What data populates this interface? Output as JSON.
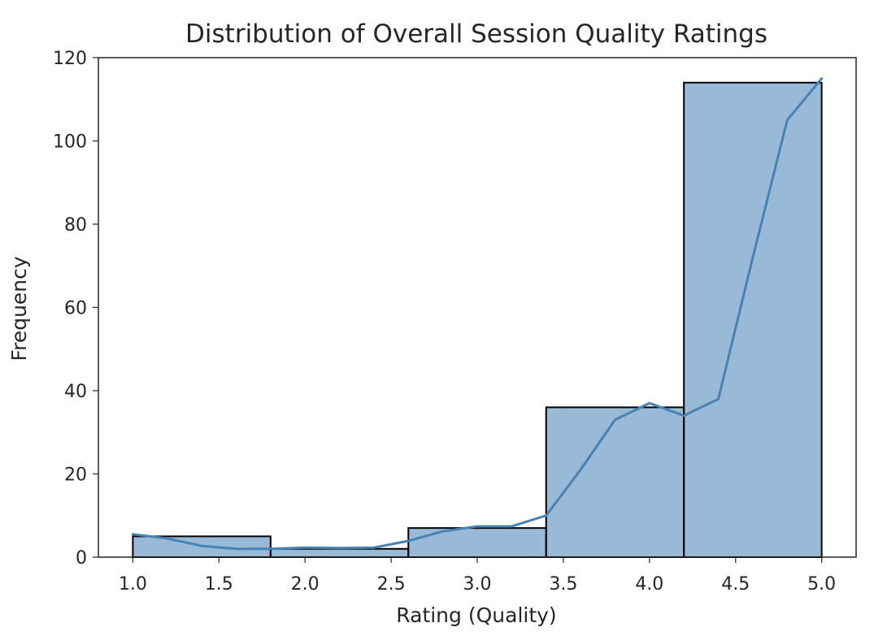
{
  "chart_data": {
    "type": "bar",
    "title": "Distribution of Overall Session Quality Ratings",
    "xlabel": "Rating (Quality)",
    "ylabel": "Frequency",
    "xlim": [
      0.8,
      5.2
    ],
    "ylim": [
      0,
      120
    ],
    "xticks": [
      1.0,
      1.5,
      2.0,
      2.5,
      3.0,
      3.5,
      4.0,
      4.5,
      5.0
    ],
    "xtick_labels": [
      "1.0",
      "1.5",
      "2.0",
      "2.5",
      "3.0",
      "3.5",
      "4.0",
      "4.5",
      "5.0"
    ],
    "yticks": [
      0,
      20,
      40,
      60,
      80,
      100,
      120
    ],
    "ytick_labels": [
      "0",
      "20",
      "40",
      "60",
      "80",
      "100",
      "120"
    ],
    "bins": [
      {
        "start": 1.0,
        "end": 1.8,
        "count": 5
      },
      {
        "start": 1.8,
        "end": 2.6,
        "count": 2
      },
      {
        "start": 2.6,
        "end": 3.4,
        "count": 7
      },
      {
        "start": 3.4,
        "end": 4.2,
        "count": 36
      },
      {
        "start": 4.2,
        "end": 5.0,
        "count": 114
      }
    ],
    "kde_curve": {
      "x": [
        1.0,
        1.2,
        1.4,
        1.6,
        1.8,
        2.0,
        2.2,
        2.4,
        2.6,
        2.8,
        3.0,
        3.2,
        3.4,
        3.6,
        3.8,
        4.0,
        4.2,
        4.4,
        4.6,
        4.8,
        5.0
      ],
      "y": [
        5.5,
        4.5,
        2.7,
        2.0,
        2.0,
        2.3,
        2.2,
        2.3,
        3.9,
        6.2,
        7.4,
        7.4,
        10.0,
        21.0,
        33.0,
        37.0,
        34.0,
        38.0,
        72.0,
        105.0,
        115.0
      ]
    },
    "grid": false,
    "legend": "none",
    "colors": {
      "bar_fill": "#4682b4",
      "bar_edge": "#000000",
      "kde_line": "#4682b4"
    }
  }
}
